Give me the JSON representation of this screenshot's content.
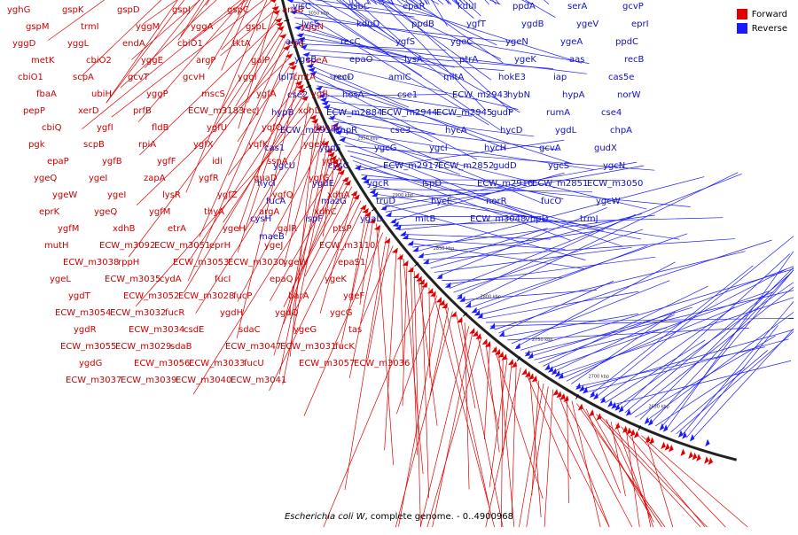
{
  "caption": {
    "organism": "Escherichia coli W",
    "suffix": ", complete genome. - 0..4900968"
  },
  "legend": [
    {
      "label": "Forward",
      "color": "#e00000"
    },
    {
      "label": "Reverse",
      "color": "#1a1aff"
    }
  ],
  "colors": {
    "forward": "#e00000",
    "reverse": "#1a1aff",
    "backbone": "#222222",
    "label_forward": "#cc0000",
    "label_reverse": "#1010cc"
  },
  "map": {
    "genome_length_bp": 4900968,
    "visible_start_bp": 2600000,
    "visible_end_bp": 3300000,
    "tick_labels": [
      "3300 kbp",
      "3250 kbp",
      "3200 kbp",
      "3150 kbp",
      "3100 kbp",
      "3050 kbp",
      "3000 kbp",
      "2950 kbp",
      "2900 kbp",
      "2850 kbp",
      "2800 kbp",
      "2750 kbp",
      "2700 kbp",
      "2650 kbp"
    ]
  },
  "outer_labels": [
    "yghG",
    "gspK",
    "gspD",
    "gspJ",
    "gspC",
    "ansB",
    "gspM",
    "trmI",
    "yggM",
    "yggA",
    "gspL",
    "yggN",
    "yggD",
    "yggL",
    "endA",
    "cbiO1",
    "tktA",
    "epd",
    "metK",
    "cbiO2",
    "yggE",
    "argP",
    "galP",
    "speA",
    "cbiO1",
    "scpA",
    "gcvT",
    "gcvH",
    "yggI",
    "cmtA",
    "fbaA",
    "ubiH",
    "yggP",
    "mscS",
    "ygfA",
    "ygfI",
    "pepP",
    "xerD",
    "prfB",
    "ECW_m3183",
    "recJ",
    "xdhD",
    "cbiQ",
    "ygfI",
    "fldB",
    "ygfU",
    "yqfO",
    "hyuA",
    "pgk",
    "scpB",
    "rpiA",
    "ygfX",
    "yqfK",
    "ygeX",
    "epaP",
    "ygfB",
    "ygfF",
    "idi",
    "ssnA",
    "ygeY",
    "ygeQ",
    "ygeI",
    "zapA",
    "ygfR",
    "guaD",
    "ygfG",
    "ygeW",
    "ygeI",
    "lysR",
    "ygfZ",
    "ygfQ",
    "xdhA",
    "eprK",
    "ygeQ",
    "ygfM",
    "thyA",
    "argA",
    "xdhC",
    "ygfM",
    "xdhB",
    "etrA",
    "ygeH",
    "galR",
    "ptsP",
    "mutH",
    "ECW_m3092",
    "ECW_m3051",
    "eprH",
    "ygeJ",
    "ECW_m3110",
    "ECW_m3038",
    "rppH",
    "ECW_m3053",
    "ECW_m3030",
    "ygeW",
    "epaS1",
    "ygeL",
    "ECW_m3035",
    "cydA",
    "fucI",
    "epaQ",
    "ygeK",
    "ygdT",
    "ECW_m3052",
    "ECW_m3028",
    "fucP",
    "barA",
    "ygeF",
    "ECW_m3054",
    "ECW_m3032",
    "fucR",
    "ygdH",
    "ygdQ",
    "ygcG",
    "ygdR",
    "ECW_m3034",
    "csdE",
    "sdaC",
    "ygeG",
    "tas",
    "ECW_m3055",
    "ECW_m3029",
    "sdaB",
    "ECW_m3047",
    "ECW_m3031",
    "fucK",
    "ygdG",
    "ECW_m3056",
    "ECW_m3033",
    "fucU",
    "ECW_m3057",
    "ECW_m3036",
    "ECW_m3037",
    "ECW_m3039",
    "ECW_m3040",
    "ECW_m3041"
  ],
  "inner_labels": [
    "visC",
    "dsbC",
    "epaR",
    "kduI",
    "ppdA",
    "serA",
    "gcvP",
    "lysS",
    "kduD",
    "ppdB",
    "ygfT",
    "ygdB",
    "ygeV",
    "eprI",
    "araE",
    "recC",
    "ygfS",
    "ygeC",
    "ygeN",
    "ygeA",
    "ppdC",
    "ygeB",
    "epaO",
    "lysA",
    "ptrA",
    "ygeK",
    "aas",
    "recB",
    "lplT",
    "recD",
    "amiC",
    "mltA",
    "hokE3",
    "iap",
    "cas5e",
    "cse2",
    "hosA",
    "cse1",
    "ECW_m2943",
    "hybN",
    "hypA",
    "norW",
    "hypB",
    "ECW_m2884",
    "ECW_m2944",
    "ECW_m2945",
    "gudP",
    "rumA",
    "cse4",
    "ECW_m2934",
    "chpR",
    "cse3",
    "hycA",
    "hycD",
    "ygdL",
    "chpA",
    "cas1",
    "ygdF",
    "ygcG",
    "ygcI",
    "hycH",
    "gcvA",
    "gudX",
    "ygcU",
    "cysC",
    "ECW_m2917",
    "ECW_m2852",
    "gudD",
    "ygcS",
    "ygcN",
    "hycI",
    "ygdE",
    "ygcR",
    "ispD",
    "ECW_m2916",
    "ECW_m2851",
    "ECW_m3050",
    "fucA",
    "mazG",
    "truD",
    "hycE",
    "norR",
    "fucO",
    "ygcW",
    "cysH",
    "ispF",
    "ygaD",
    "mltB",
    "ECW_m3048",
    "vhpD",
    "trmJ",
    "maeB"
  ]
}
